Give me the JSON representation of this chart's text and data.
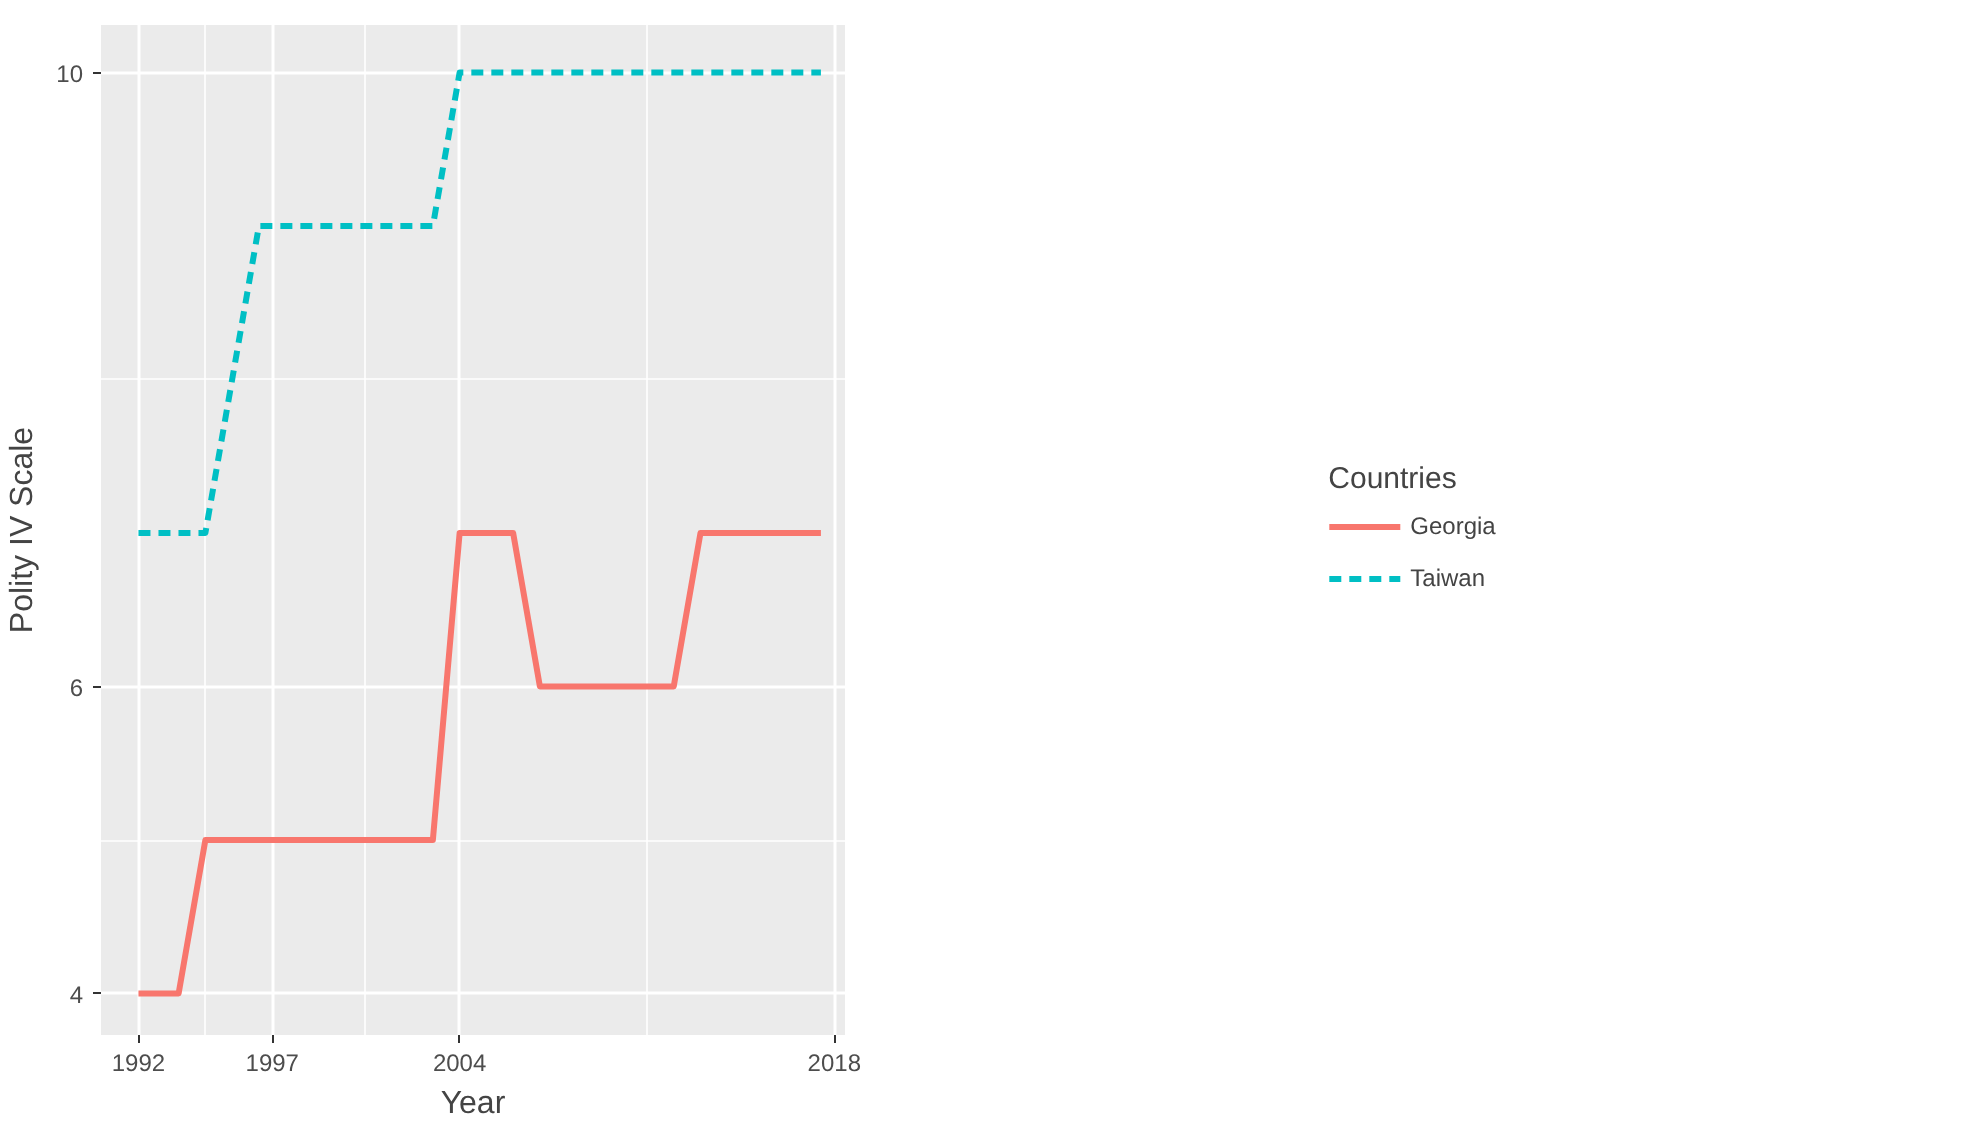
{
  "chart_data": {
    "type": "line",
    "xlabel": "Year",
    "ylabel": "Polity IV Scale",
    "legend_title": "Countries",
    "legend": "right",
    "grid": true,
    "xlim": [
      1990.6,
      2018.4
    ],
    "ylim": [
      3.73,
      10.31
    ],
    "xticks": [
      1992,
      1997,
      2004,
      2018
    ],
    "yticks": [
      4,
      6,
      10
    ],
    "series": [
      {
        "name": "Georgia",
        "color": "#f8766d",
        "line_style": "solid",
        "x": [
          1992,
          1993.5,
          1994.5,
          2003,
          2004,
          2006,
          2007,
          2012,
          2013,
          2017.5
        ],
        "values": [
          4,
          4,
          5,
          5,
          7,
          7,
          6,
          6,
          7,
          7
        ]
      },
      {
        "name": "Taiwan",
        "color": "#00bfc4",
        "line_style": "dashed",
        "x": [
          1992,
          1994.5,
          1996.5,
          2003,
          2004,
          2017.5
        ],
        "values": [
          7,
          7,
          9,
          9,
          10,
          10
        ]
      }
    ]
  }
}
